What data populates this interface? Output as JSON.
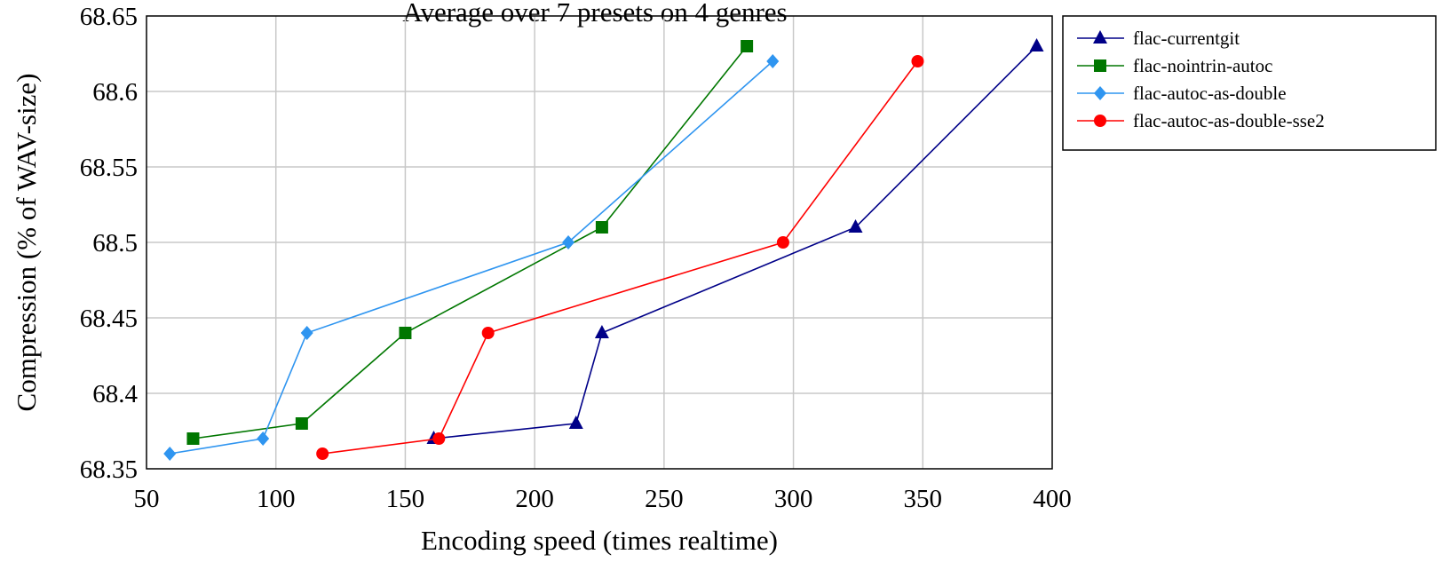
{
  "chart_data": {
    "type": "line",
    "title": "Average over 7 presets on 4 genres",
    "xlabel": "Encoding speed (times realtime)",
    "ylabel": "Compression (% of WAV-size)",
    "xlim": [
      50,
      400
    ],
    "ylim": [
      68.35,
      68.65
    ],
    "x_ticks": [
      "50",
      "100",
      "150",
      "200",
      "250",
      "300",
      "350",
      "400"
    ],
    "y_ticks": [
      "68.35",
      "68.4",
      "68.45",
      "68.5",
      "68.55",
      "68.6",
      "68.65"
    ],
    "grid": true,
    "legend_position": "outside-right-top",
    "series": [
      {
        "name": "flac-currentgit",
        "color": "#000088",
        "marker": "triangle",
        "points": [
          [
            161,
            68.37
          ],
          [
            216,
            68.38
          ],
          [
            226,
            68.44
          ],
          [
            324,
            68.51
          ],
          [
            394,
            68.63
          ]
        ]
      },
      {
        "name": "flac-nointrin-autoc",
        "color": "#007700",
        "marker": "square",
        "points": [
          [
            68,
            68.37
          ],
          [
            110,
            68.38
          ],
          [
            150,
            68.44
          ],
          [
            226,
            68.51
          ],
          [
            282,
            68.63
          ]
        ]
      },
      {
        "name": "flac-autoc-as-double",
        "color": "#2f95f0",
        "marker": "diamond",
        "points": [
          [
            59,
            68.36
          ],
          [
            95,
            68.37
          ],
          [
            112,
            68.44
          ],
          [
            213,
            68.5
          ],
          [
            292,
            68.62
          ]
        ]
      },
      {
        "name": "flac-autoc-as-double-sse2",
        "color": "#ff0000",
        "marker": "circle",
        "points": [
          [
            118,
            68.36
          ],
          [
            163,
            68.37
          ],
          [
            182,
            68.44
          ],
          [
            296,
            68.5
          ],
          [
            348,
            68.62
          ]
        ]
      }
    ]
  }
}
